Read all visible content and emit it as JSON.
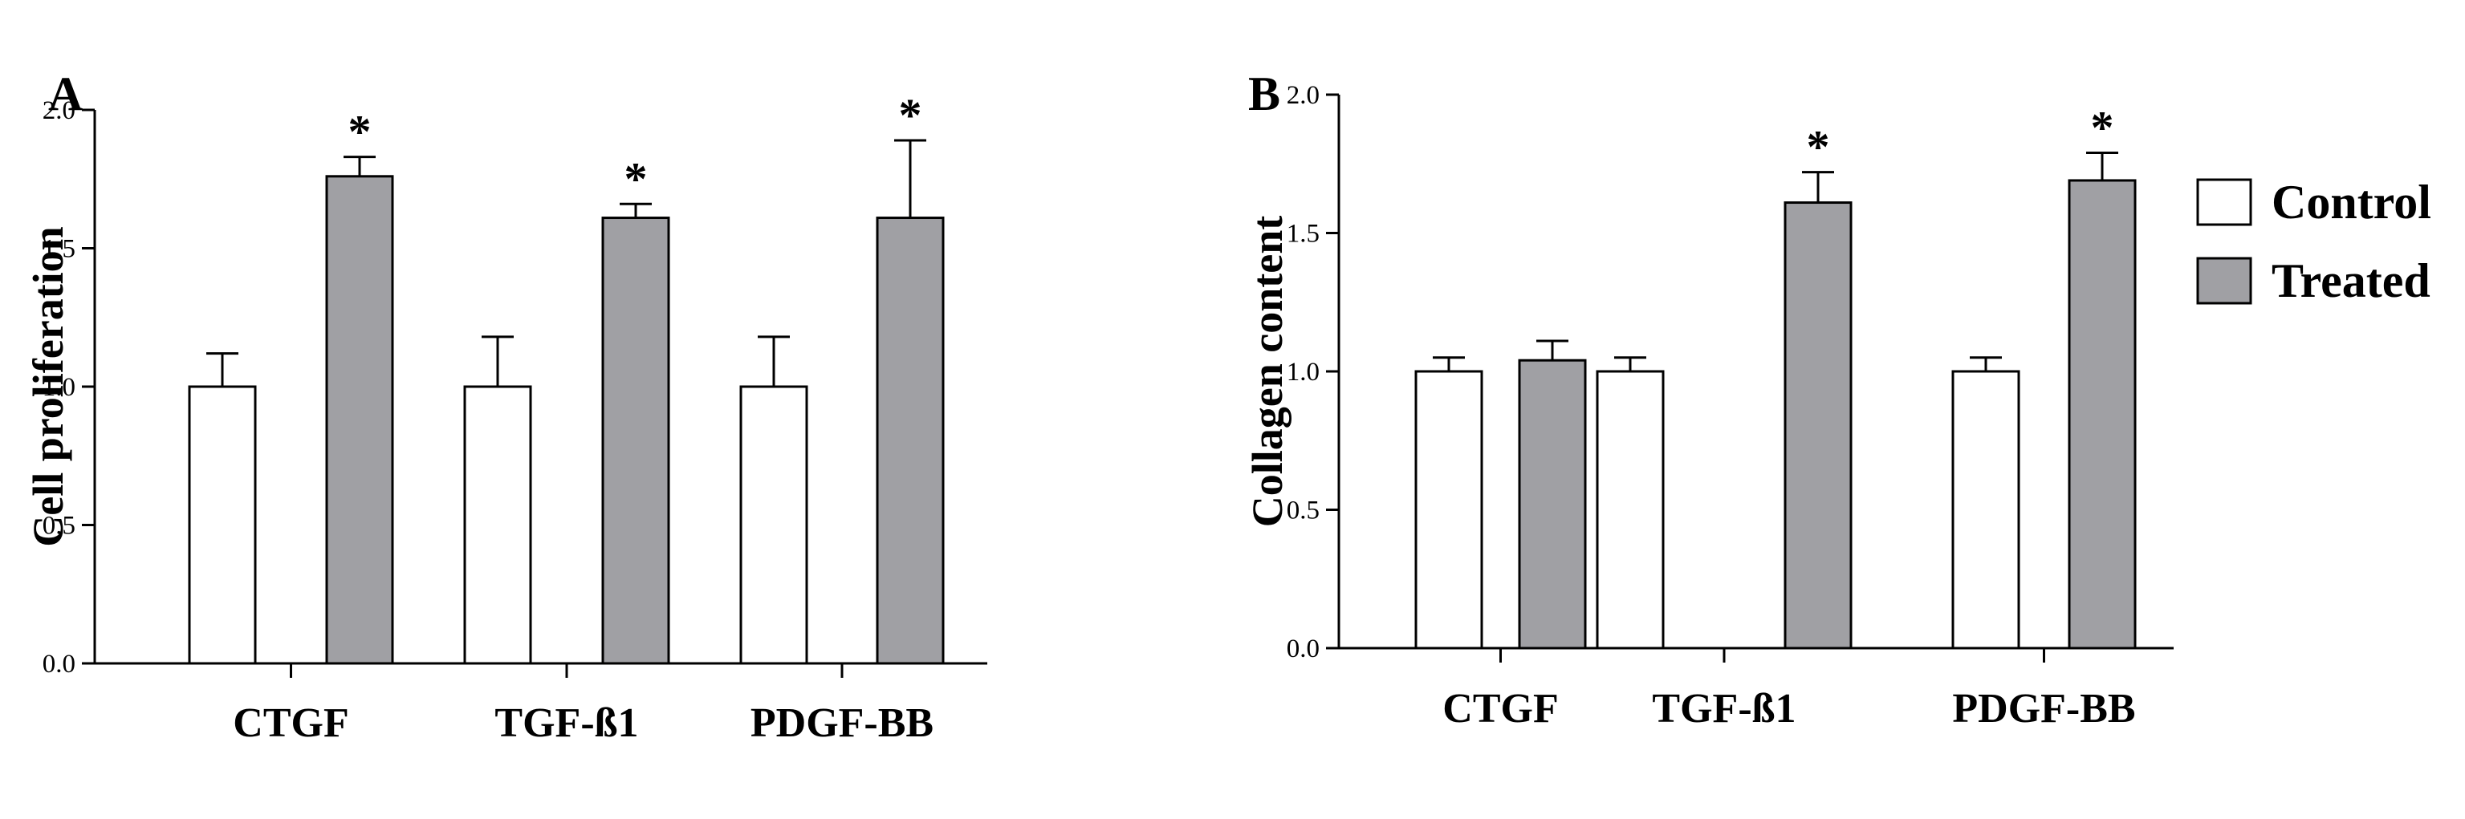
{
  "colors": {
    "control": "#ffffff",
    "treated": "#a0a0a4",
    "stroke": "#000000"
  },
  "legend": [
    {
      "label": "Control",
      "color": "#ffffff"
    },
    {
      "label": "Treated",
      "color": "#a0a0a4"
    }
  ],
  "chart_data": [
    {
      "type": "bar",
      "panel": "A",
      "categories": [
        "CTGF",
        "TGF-ß1",
        "PDGF-BB"
      ],
      "ylabel": "Cell proliferation",
      "ylim": [
        0,
        2.0
      ],
      "yticks": [
        "0.0",
        "0.5",
        "1.0",
        "1.5",
        "2.0"
      ],
      "series": [
        {
          "name": "Control",
          "values": [
            1.0,
            1.0,
            1.0
          ],
          "errors": [
            0.12,
            0.18,
            0.18
          ]
        },
        {
          "name": "Treated",
          "values": [
            1.76,
            1.61,
            1.61
          ],
          "errors": [
            0.07,
            0.05,
            0.28
          ]
        }
      ],
      "significance": [
        {
          "category": "CTGF",
          "series": "Treated",
          "mark": "*"
        },
        {
          "category": "TGF-ß1",
          "series": "Treated",
          "mark": "*"
        },
        {
          "category": "PDGF-BB",
          "series": "Treated",
          "mark": "*"
        }
      ]
    },
    {
      "type": "bar",
      "panel": "B",
      "categories": [
        "CTGF",
        "TGF-ß1",
        "PDGF-BB"
      ],
      "ylabel": "Collagen content",
      "ylim": [
        0,
        2.0
      ],
      "yticks": [
        "0.0",
        "0.5",
        "1.0",
        "1.5",
        "2.0"
      ],
      "series": [
        {
          "name": "Control",
          "values": [
            1.0,
            1.0,
            1.0
          ],
          "errors": [
            0.05,
            0.05,
            0.05
          ]
        },
        {
          "name": "Treated",
          "values": [
            1.04,
            1.61,
            1.69
          ],
          "errors": [
            0.07,
            0.11,
            0.1
          ]
        }
      ],
      "significance": [
        {
          "category": "TGF-ß1",
          "series": "Treated",
          "mark": "*"
        },
        {
          "category": "PDGF-BB",
          "series": "Treated",
          "mark": "*"
        }
      ]
    }
  ]
}
